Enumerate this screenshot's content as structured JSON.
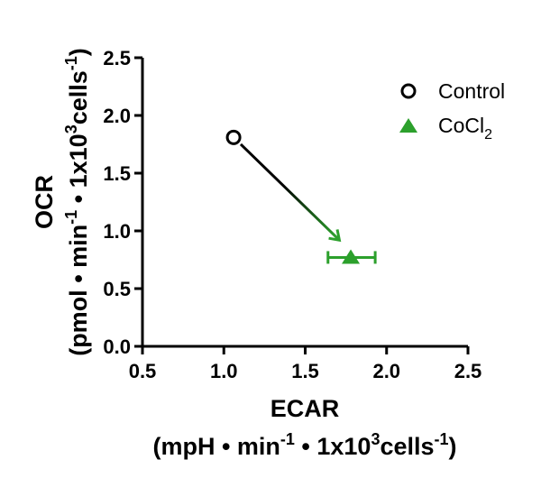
{
  "chart_data": {
    "type": "scatter",
    "xlabel": "ECAR",
    "xunits": {
      "base": "(mpH • min",
      "sup1": "-1",
      "mid": " • 1x10",
      "sup2": "3",
      "rest": "cells",
      "sup3": "-1",
      "end": ")"
    },
    "ylabel": "OCR",
    "yunits": {
      "base": "(pmol • min",
      "sup1": "-1",
      "mid": " • 1x10",
      "sup2": "3",
      "rest": "cells",
      "sup3": "-1",
      "end": ")"
    },
    "xlim": [
      0.5,
      2.5
    ],
    "ylim": [
      0.0,
      2.5
    ],
    "xticks": [
      "0.5",
      "1.0",
      "1.5",
      "2.0",
      "2.5"
    ],
    "yticks": [
      "0.0",
      "0.5",
      "1.0",
      "1.5",
      "2.0",
      "2.5"
    ],
    "grid": false,
    "legend_position": "top-right",
    "series": [
      {
        "name": "Control",
        "marker": "open-circle",
        "color": "#000000",
        "points": [
          {
            "x": 1.06,
            "y": 1.81
          }
        ]
      },
      {
        "name": "CoCl",
        "name_sub": "2",
        "marker": "filled-triangle",
        "color": "#2ca02c",
        "points": [
          {
            "x": 1.78,
            "y": 0.77,
            "xerr_low": 1.64,
            "xerr_high": 1.93
          }
        ]
      }
    ],
    "annotations": [
      {
        "type": "arrow",
        "from": {
          "x": 1.06,
          "y": 1.81
        },
        "to": {
          "x": 1.71,
          "y": 0.92
        },
        "gradient": [
          "#000000",
          "#2ca02c"
        ]
      }
    ]
  }
}
